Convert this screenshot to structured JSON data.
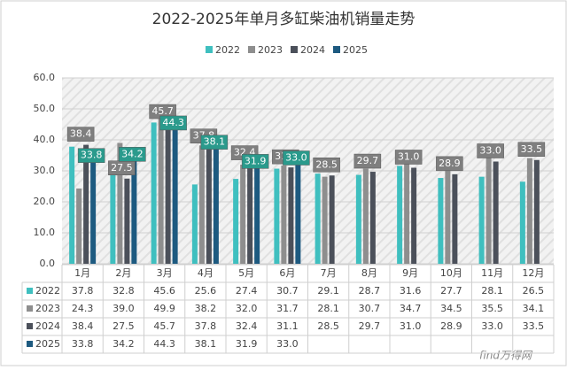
{
  "chart_data": {
    "type": "bar",
    "title": "2022-2025年单月多缸柴油机销量走势",
    "categories": [
      "1月",
      "2月",
      "3月",
      "4月",
      "5月",
      "6月",
      "7月",
      "8月",
      "9月",
      "10月",
      "11月",
      "12月"
    ],
    "series": [
      {
        "name": "2022",
        "color": "#3fbfbf",
        "values": [
          37.8,
          32.8,
          45.6,
          25.6,
          27.4,
          30.7,
          29.1,
          28.7,
          31.6,
          27.7,
          28.1,
          26.5
        ],
        "value_labels": [
          "37.8",
          "32.8",
          "45.6",
          "25.6",
          "27.4",
          "30.7",
          "29.1",
          "28.7",
          "31.6",
          "27.7",
          "28.1",
          "26.5"
        ]
      },
      {
        "name": "2023",
        "color": "#8e8e8e",
        "values": [
          24.3,
          39.0,
          49.9,
          38.2,
          32.0,
          31.7,
          28.1,
          30.7,
          34.7,
          34.5,
          35.5,
          34.1
        ],
        "value_labels": [
          "24.3",
          "39.0",
          "49.9",
          "38.2",
          "32.0",
          "31.7",
          "28.1",
          "30.7",
          "34.7",
          "34.5",
          "35.5",
          "34.1"
        ]
      },
      {
        "name": "2024",
        "color": "#4b505a",
        "values": [
          38.4,
          27.5,
          45.7,
          37.8,
          32.4,
          31.1,
          28.5,
          29.7,
          31.0,
          28.9,
          33.0,
          33.5
        ],
        "value_labels": [
          "38.4",
          "27.5",
          "45.7",
          "37.8",
          "32.4",
          "31.1",
          "28.5",
          "29.7",
          "31.0",
          "28.9",
          "33.0",
          "33.5"
        ]
      },
      {
        "name": "2025",
        "color": "#1d5a80",
        "values": [
          33.8,
          34.2,
          44.3,
          38.1,
          31.9,
          33.0,
          null,
          null,
          null,
          null,
          null,
          null
        ],
        "value_labels": [
          "33.8",
          "34.2",
          "44.3",
          "38.1",
          "31.9",
          "33.0",
          null,
          null,
          null,
          null,
          null,
          null
        ]
      }
    ],
    "ylim": [
      0,
      60
    ],
    "yticks": [
      {
        "value": 0,
        "label": "0.0"
      },
      {
        "value": 10,
        "label": "10.0"
      },
      {
        "value": 20,
        "label": "20.0"
      },
      {
        "value": 30,
        "label": "30.0"
      },
      {
        "value": 40,
        "label": "40.0"
      },
      {
        "value": 50,
        "label": "50.0"
      },
      {
        "value": 60,
        "label": "60.0"
      }
    ],
    "grid": true,
    "watermark": "find万得网"
  }
}
